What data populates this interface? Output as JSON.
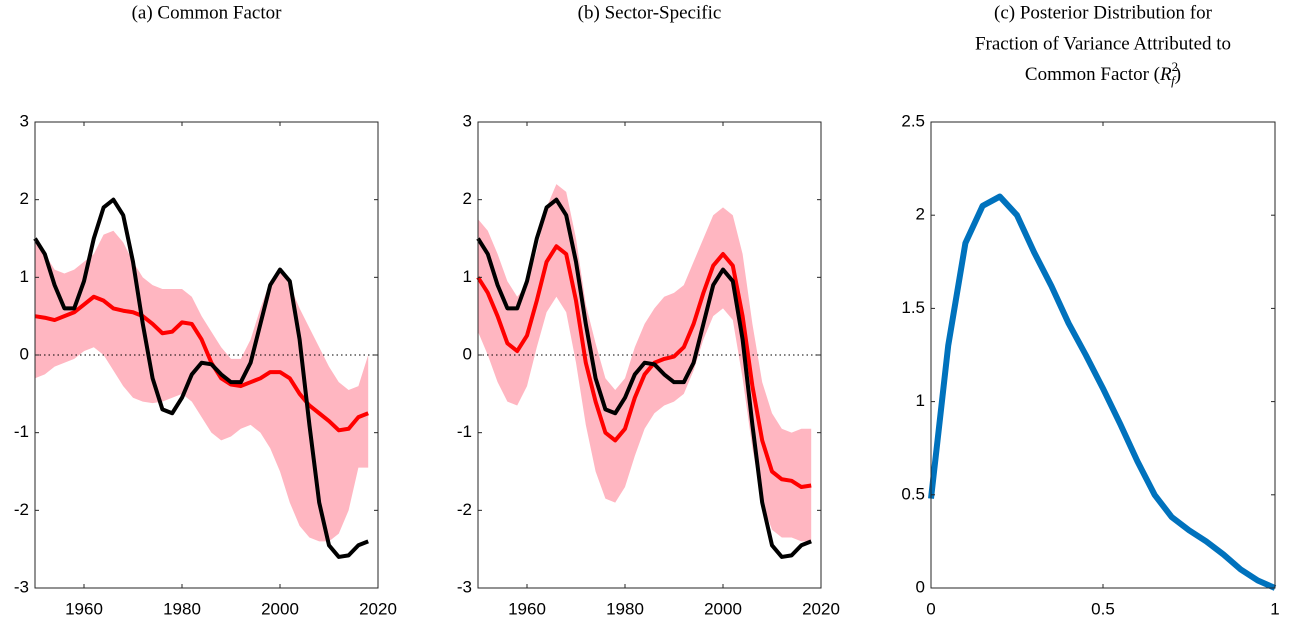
{
  "chart_data": [
    {
      "type": "line",
      "title": "(a) Common Factor",
      "x": [
        1950,
        1952,
        1954,
        1956,
        1958,
        1960,
        1962,
        1964,
        1966,
        1968,
        1970,
        1972,
        1974,
        1976,
        1978,
        1980,
        1982,
        1984,
        1986,
        1988,
        1990,
        1992,
        1994,
        1996,
        1998,
        2000,
        2002,
        2004,
        2006,
        2008,
        2010,
        2012,
        2014,
        2016,
        2018
      ],
      "band": {
        "color": "#ffb6c1",
        "lower": [
          -0.3,
          -0.25,
          -0.15,
          -0.1,
          -0.05,
          0.05,
          0.1,
          0.0,
          -0.2,
          -0.4,
          -0.55,
          -0.6,
          -0.62,
          -0.6,
          -0.55,
          -0.5,
          -0.6,
          -0.8,
          -1.0,
          -1.1,
          -1.05,
          -0.95,
          -0.9,
          -1.0,
          -1.2,
          -1.5,
          -1.9,
          -2.2,
          -2.35,
          -2.4,
          -2.4,
          -2.3,
          -2.0,
          -1.45,
          -1.45
        ],
        "upper": [
          1.45,
          1.3,
          1.1,
          1.05,
          1.1,
          1.2,
          1.3,
          1.55,
          1.6,
          1.45,
          1.2,
          1.0,
          0.9,
          0.85,
          0.85,
          0.85,
          0.75,
          0.5,
          0.3,
          0.1,
          -0.05,
          -0.05,
          0.2,
          0.6,
          0.95,
          1.1,
          0.9,
          0.6,
          0.35,
          0.1,
          -0.15,
          -0.35,
          -0.45,
          -0.4,
          0.0
        ]
      },
      "series": [
        {
          "color": "#ff0000",
          "values": [
            0.5,
            0.48,
            0.45,
            0.5,
            0.55,
            0.65,
            0.75,
            0.7,
            0.6,
            0.57,
            0.55,
            0.5,
            0.4,
            0.28,
            0.3,
            0.42,
            0.4,
            0.2,
            -0.1,
            -0.3,
            -0.38,
            -0.4,
            -0.35,
            -0.3,
            -0.22,
            -0.22,
            -0.3,
            -0.5,
            -0.65,
            -0.75,
            -0.85,
            -0.97,
            -0.95,
            -0.8,
            -0.75
          ]
        },
        {
          "color": "#000000",
          "values": [
            1.5,
            1.3,
            0.9,
            0.6,
            0.6,
            0.95,
            1.5,
            1.9,
            2.0,
            1.8,
            1.2,
            0.4,
            -0.3,
            -0.7,
            -0.75,
            -0.55,
            -0.25,
            -0.1,
            -0.12,
            -0.25,
            -0.35,
            -0.35,
            -0.1,
            0.4,
            0.9,
            1.1,
            0.95,
            0.2,
            -0.9,
            -1.9,
            -2.45,
            -2.6,
            -2.58,
            -2.45,
            -2.4
          ]
        }
      ],
      "xlim": [
        1950,
        2020
      ],
      "xticks": [
        1960,
        1980,
        2000,
        2020
      ],
      "ylim": [
        -3,
        3
      ],
      "yticks": [
        -3,
        -2,
        -1,
        0,
        1,
        2,
        3
      ],
      "zero_line": true
    },
    {
      "type": "line",
      "title": "(b) Sector-Specific",
      "x": [
        1950,
        1952,
        1954,
        1956,
        1958,
        1960,
        1962,
        1964,
        1966,
        1968,
        1970,
        1972,
        1974,
        1976,
        1978,
        1980,
        1982,
        1984,
        1986,
        1988,
        1990,
        1992,
        1994,
        1996,
        1998,
        2000,
        2002,
        2004,
        2006,
        2008,
        2010,
        2012,
        2014,
        2016,
        2018
      ],
      "band": {
        "color": "#ffb6c1",
        "lower": [
          0.3,
          0.0,
          -0.35,
          -0.6,
          -0.65,
          -0.4,
          0.1,
          0.55,
          0.75,
          0.55,
          -0.1,
          -0.9,
          -1.5,
          -1.85,
          -1.9,
          -1.7,
          -1.3,
          -0.95,
          -0.75,
          -0.65,
          -0.6,
          -0.5,
          -0.2,
          0.2,
          0.5,
          0.6,
          0.45,
          -0.3,
          -1.2,
          -1.9,
          -2.25,
          -2.35,
          -2.35,
          -2.4,
          -2.4
        ],
        "upper": [
          1.75,
          1.6,
          1.3,
          0.95,
          0.75,
          0.9,
          1.35,
          1.9,
          2.2,
          2.1,
          1.5,
          0.65,
          0.15,
          -0.3,
          -0.45,
          -0.3,
          0.1,
          0.4,
          0.6,
          0.75,
          0.8,
          0.9,
          1.2,
          1.5,
          1.8,
          1.9,
          1.8,
          1.3,
          0.4,
          -0.35,
          -0.75,
          -0.95,
          -1.0,
          -0.95,
          -0.95
        ]
      },
      "series": [
        {
          "color": "#ff0000",
          "values": [
            1.0,
            0.8,
            0.5,
            0.15,
            0.05,
            0.25,
            0.7,
            1.2,
            1.4,
            1.3,
            0.7,
            -0.1,
            -0.6,
            -1.0,
            -1.1,
            -0.95,
            -0.55,
            -0.25,
            -0.1,
            -0.05,
            -0.02,
            0.1,
            0.4,
            0.8,
            1.15,
            1.3,
            1.15,
            0.5,
            -0.4,
            -1.1,
            -1.5,
            -1.6,
            -1.62,
            -1.7,
            -1.68
          ]
        },
        {
          "color": "#000000",
          "values": [
            1.5,
            1.3,
            0.9,
            0.6,
            0.6,
            0.95,
            1.5,
            1.9,
            2.0,
            1.8,
            1.2,
            0.4,
            -0.3,
            -0.7,
            -0.75,
            -0.55,
            -0.25,
            -0.1,
            -0.12,
            -0.25,
            -0.35,
            -0.35,
            -0.1,
            0.4,
            0.9,
            1.1,
            0.95,
            0.2,
            -0.9,
            -1.9,
            -2.45,
            -2.6,
            -2.58,
            -2.45,
            -2.4
          ]
        }
      ],
      "xlim": [
        1950,
        2020
      ],
      "xticks": [
        1960,
        1980,
        2000,
        2020
      ],
      "ylim": [
        -3,
        3
      ],
      "yticks": [
        -3,
        -2,
        -1,
        0,
        1,
        2,
        3
      ],
      "zero_line": true
    },
    {
      "type": "line",
      "title": [
        "(c) Posterior Distribution for",
        "Fraction of Variance Attributed to",
        [
          "Common Factor (",
          "R",
          "2",
          "f",
          ")"
        ]
      ],
      "x": [
        0,
        0.05,
        0.1,
        0.15,
        0.2,
        0.25,
        0.3,
        0.35,
        0.4,
        0.45,
        0.5,
        0.55,
        0.6,
        0.65,
        0.7,
        0.75,
        0.8,
        0.85,
        0.9,
        0.95,
        1
      ],
      "series": [
        {
          "color": "#0072bd",
          "values": [
            0.48,
            1.3,
            1.85,
            2.05,
            2.1,
            2.0,
            1.8,
            1.62,
            1.42,
            1.25,
            1.07,
            0.88,
            0.68,
            0.5,
            0.38,
            0.31,
            0.25,
            0.18,
            0.1,
            0.04,
            0.0
          ]
        }
      ],
      "xlim": [
        0,
        1
      ],
      "xticks": [
        0,
        0.5,
        1
      ],
      "ylim": [
        0,
        2.5
      ],
      "yticks": [
        0,
        0.5,
        1,
        1.5,
        2,
        2.5
      ],
      "zero_line": false
    }
  ]
}
